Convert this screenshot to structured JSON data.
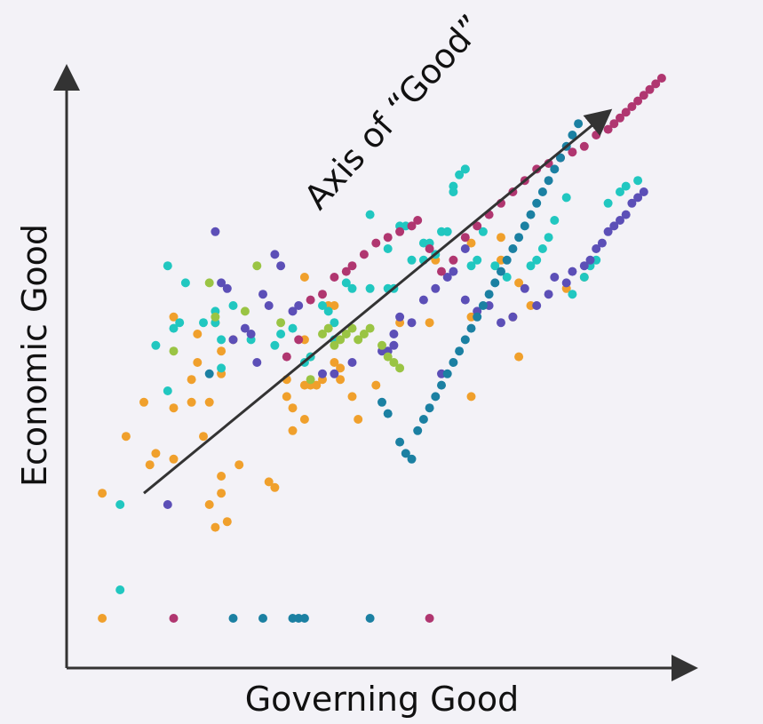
{
  "chart_data": {
    "type": "scatter",
    "title": "",
    "xlabel": "Governing Good",
    "ylabel": "Economic Good",
    "xlim": [
      0,
      100
    ],
    "ylim": [
      0,
      100
    ],
    "grid": false,
    "legend": "none",
    "annotation": {
      "text": "Axis of “Good”",
      "from": [
        10,
        27
      ],
      "to": [
        88,
        94
      ]
    },
    "colors": {
      "orange": "#f0a02c",
      "cyan": "#21c7c0",
      "purple": "#5c4fb7",
      "magenta": "#b03670",
      "green": "#9ac444",
      "teal": "#1b80a2",
      "axis": "#333333"
    },
    "series": [
      {
        "color": "orange",
        "points": [
          [
            3,
            5
          ],
          [
            3,
            27
          ],
          [
            7,
            37
          ],
          [
            10,
            43
          ],
          [
            11,
            32
          ],
          [
            12,
            34
          ],
          [
            15,
            33
          ],
          [
            15,
            42
          ],
          [
            15,
            58
          ],
          [
            18,
            47
          ],
          [
            18,
            43
          ],
          [
            19,
            55
          ],
          [
            19,
            50
          ],
          [
            20,
            37
          ],
          [
            21,
            43
          ],
          [
            21,
            25
          ],
          [
            23,
            27
          ],
          [
            23,
            30
          ],
          [
            22,
            21
          ],
          [
            22,
            57
          ],
          [
            23,
            52
          ],
          [
            23,
            48
          ],
          [
            24,
            22
          ],
          [
            25,
            54
          ],
          [
            26,
            32
          ],
          [
            31,
            29
          ],
          [
            32,
            28
          ],
          [
            34,
            44
          ],
          [
            34,
            47
          ],
          [
            35,
            38
          ],
          [
            35,
            42
          ],
          [
            37,
            40
          ],
          [
            37,
            65
          ],
          [
            37,
            54
          ],
          [
            37,
            46
          ],
          [
            38,
            51
          ],
          [
            38,
            46
          ],
          [
            39,
            46
          ],
          [
            40,
            47
          ],
          [
            41,
            60
          ],
          [
            42,
            60
          ],
          [
            42,
            50
          ],
          [
            43,
            47
          ],
          [
            43,
            49
          ],
          [
            45,
            44
          ],
          [
            46,
            40
          ],
          [
            49,
            46
          ],
          [
            53,
            57
          ],
          [
            58,
            57
          ],
          [
            59,
            68
          ],
          [
            65,
            71
          ],
          [
            65,
            44
          ],
          [
            65,
            58
          ],
          [
            70,
            72
          ],
          [
            70,
            68
          ],
          [
            72,
            58
          ],
          [
            73,
            51
          ],
          [
            73,
            64
          ],
          [
            75,
            60
          ],
          [
            81,
            63
          ],
          [
            84,
            65
          ]
        ]
      },
      {
        "color": "cyan",
        "points": [
          [
            6,
            10
          ],
          [
            6,
            25
          ],
          [
            12,
            53
          ],
          [
            14,
            67
          ],
          [
            14,
            45
          ],
          [
            15,
            56
          ],
          [
            16,
            57
          ],
          [
            17,
            64
          ],
          [
            20,
            57
          ],
          [
            22,
            59
          ],
          [
            22,
            57
          ],
          [
            23,
            49
          ],
          [
            23,
            54
          ],
          [
            25,
            60
          ],
          [
            28,
            54
          ],
          [
            32,
            53
          ],
          [
            33,
            55
          ],
          [
            35,
            56
          ],
          [
            37,
            50
          ],
          [
            38,
            51
          ],
          [
            40,
            60
          ],
          [
            41,
            59
          ],
          [
            42,
            57
          ],
          [
            42,
            54
          ],
          [
            44,
            64
          ],
          [
            45,
            63
          ],
          [
            48,
            63
          ],
          [
            48,
            76
          ],
          [
            51,
            70
          ],
          [
            51,
            63
          ],
          [
            52,
            63
          ],
          [
            53,
            74
          ],
          [
            54,
            74
          ],
          [
            55,
            68
          ],
          [
            57,
            71
          ],
          [
            57,
            68
          ],
          [
            58,
            71
          ],
          [
            59,
            69
          ],
          [
            60,
            73
          ],
          [
            61,
            73
          ],
          [
            62,
            81
          ],
          [
            62,
            80
          ],
          [
            63,
            83
          ],
          [
            64,
            84
          ],
          [
            64,
            84
          ],
          [
            65,
            67
          ],
          [
            66,
            68
          ],
          [
            67,
            73
          ],
          [
            69,
            67
          ],
          [
            71,
            65
          ],
          [
            75,
            67
          ],
          [
            76,
            68
          ],
          [
            77,
            70
          ],
          [
            78,
            72
          ],
          [
            79,
            75
          ],
          [
            81,
            79
          ],
          [
            82,
            62
          ],
          [
            84,
            65
          ],
          [
            85,
            67
          ],
          [
            86,
            68
          ],
          [
            88,
            78
          ],
          [
            90,
            80
          ],
          [
            91,
            81
          ],
          [
            93,
            82
          ]
        ]
      },
      {
        "color": "purple",
        "points": [
          [
            14,
            25
          ],
          [
            22,
            73
          ],
          [
            23,
            64
          ],
          [
            24,
            63
          ],
          [
            25,
            54
          ],
          [
            27,
            56
          ],
          [
            28,
            55
          ],
          [
            29,
            50
          ],
          [
            30,
            62
          ],
          [
            31,
            60
          ],
          [
            32,
            69
          ],
          [
            33,
            67
          ],
          [
            35,
            59
          ],
          [
            36,
            60
          ],
          [
            40,
            48
          ],
          [
            42,
            48
          ],
          [
            45,
            50
          ],
          [
            50,
            52
          ],
          [
            51,
            52
          ],
          [
            52,
            55
          ],
          [
            52,
            53
          ],
          [
            53,
            58
          ],
          [
            55,
            57
          ],
          [
            57,
            61
          ],
          [
            59,
            63
          ],
          [
            60,
            48
          ],
          [
            61,
            65
          ],
          [
            62,
            66
          ],
          [
            64,
            70
          ],
          [
            64,
            61
          ],
          [
            66,
            59
          ],
          [
            68,
            60
          ],
          [
            70,
            57
          ],
          [
            72,
            58
          ],
          [
            74,
            63
          ],
          [
            76,
            60
          ],
          [
            78,
            62
          ],
          [
            79,
            65
          ],
          [
            81,
            64
          ],
          [
            82,
            66
          ],
          [
            84,
            67
          ],
          [
            85,
            68
          ],
          [
            86,
            70
          ],
          [
            87,
            71
          ],
          [
            88,
            73
          ],
          [
            89,
            74
          ],
          [
            90,
            75
          ],
          [
            91,
            76
          ],
          [
            92,
            78
          ],
          [
            93,
            79
          ],
          [
            94,
            80
          ]
        ]
      },
      {
        "color": "magenta",
        "points": [
          [
            15,
            5
          ],
          [
            34,
            51
          ],
          [
            36,
            54
          ],
          [
            38,
            61
          ],
          [
            40,
            62
          ],
          [
            42,
            65
          ],
          [
            44,
            66
          ],
          [
            45,
            67
          ],
          [
            47,
            69
          ],
          [
            49,
            71
          ],
          [
            51,
            72
          ],
          [
            53,
            73
          ],
          [
            55,
            74
          ],
          [
            56,
            75
          ],
          [
            58,
            70
          ],
          [
            60,
            66
          ],
          [
            62,
            68
          ],
          [
            64,
            72
          ],
          [
            66,
            74
          ],
          [
            68,
            76
          ],
          [
            70,
            78
          ],
          [
            72,
            80
          ],
          [
            74,
            82
          ],
          [
            76,
            84
          ],
          [
            78,
            85
          ],
          [
            80,
            86
          ],
          [
            82,
            87
          ],
          [
            84,
            88
          ],
          [
            86,
            90
          ],
          [
            88,
            91
          ],
          [
            89,
            92
          ],
          [
            90,
            93
          ],
          [
            91,
            94
          ],
          [
            92,
            95
          ],
          [
            93,
            96
          ],
          [
            94,
            97
          ],
          [
            95,
            98
          ],
          [
            96,
            99
          ],
          [
            97,
            100
          ],
          [
            58,
            5
          ]
        ]
      },
      {
        "color": "green",
        "points": [
          [
            15,
            52
          ],
          [
            21,
            64
          ],
          [
            22,
            58
          ],
          [
            27,
            59
          ],
          [
            29,
            67
          ],
          [
            33,
            57
          ],
          [
            38,
            47
          ],
          [
            40,
            55
          ],
          [
            41,
            56
          ],
          [
            42,
            53
          ],
          [
            43,
            54
          ],
          [
            44,
            55
          ],
          [
            45,
            56
          ],
          [
            46,
            54
          ],
          [
            47,
            55
          ],
          [
            48,
            56
          ],
          [
            50,
            53
          ],
          [
            51,
            51
          ],
          [
            52,
            50
          ],
          [
            53,
            49
          ]
        ]
      },
      {
        "color": "teal",
        "points": [
          [
            21,
            48
          ],
          [
            25,
            5
          ],
          [
            30,
            5
          ],
          [
            35,
            5
          ],
          [
            36,
            5
          ],
          [
            37,
            5
          ],
          [
            48,
            5
          ],
          [
            50,
            43
          ],
          [
            51,
            41
          ],
          [
            53,
            36
          ],
          [
            54,
            34
          ],
          [
            55,
            33
          ],
          [
            56,
            38
          ],
          [
            57,
            40
          ],
          [
            58,
            42
          ],
          [
            59,
            44
          ],
          [
            60,
            46
          ],
          [
            61,
            48
          ],
          [
            62,
            50
          ],
          [
            63,
            52
          ],
          [
            64,
            54
          ],
          [
            65,
            56
          ],
          [
            66,
            58
          ],
          [
            67,
            60
          ],
          [
            68,
            62
          ],
          [
            69,
            64
          ],
          [
            70,
            66
          ],
          [
            71,
            68
          ],
          [
            72,
            70
          ],
          [
            73,
            72
          ],
          [
            74,
            74
          ],
          [
            75,
            76
          ],
          [
            76,
            78
          ],
          [
            77,
            80
          ],
          [
            78,
            82
          ],
          [
            79,
            84
          ],
          [
            80,
            86
          ],
          [
            81,
            88
          ],
          [
            82,
            90
          ],
          [
            83,
            92
          ]
        ]
      }
    ]
  }
}
